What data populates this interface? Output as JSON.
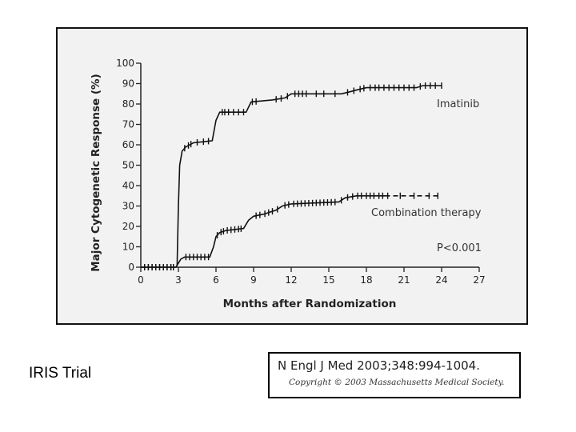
{
  "slide": {
    "caption": "IRIS Trial",
    "citation": {
      "reference": "N Engl J Med 2003;348:994-1004.",
      "copyright": "Copyright © 2003 Massachusetts Medical Society."
    }
  },
  "chart_data": {
    "type": "line",
    "title": "",
    "xlabel": "Months after Randomization",
    "ylabel": "Major Cytogenetic Response (%)",
    "xlim": [
      0,
      27
    ],
    "ylim": [
      0,
      100
    ],
    "xticks": [
      0,
      3,
      6,
      9,
      12,
      15,
      18,
      21,
      24,
      27
    ],
    "yticks": [
      0,
      10,
      20,
      30,
      40,
      50,
      60,
      70,
      80,
      90,
      100
    ],
    "annotation": "P<0.001",
    "series": [
      {
        "name": "Imatinib",
        "color": "#111111",
        "style": "solid",
        "points": [
          [
            0,
            0
          ],
          [
            2.8,
            0
          ],
          [
            2.9,
            1
          ],
          [
            3.0,
            30
          ],
          [
            3.1,
            50
          ],
          [
            3.3,
            57
          ],
          [
            3.6,
            59
          ],
          [
            4.2,
            61
          ],
          [
            5.7,
            62
          ],
          [
            6.0,
            72
          ],
          [
            6.3,
            76
          ],
          [
            6.8,
            76
          ],
          [
            8.4,
            76
          ],
          [
            8.8,
            81
          ],
          [
            10.5,
            82
          ],
          [
            11.5,
            83
          ],
          [
            12.0,
            85
          ],
          [
            16.0,
            85
          ],
          [
            16.7,
            86
          ],
          [
            17.3,
            87
          ],
          [
            18.0,
            88
          ],
          [
            22.0,
            88
          ],
          [
            22.5,
            89
          ],
          [
            24.0,
            89
          ]
        ]
      },
      {
        "name": "Combination therapy",
        "color": "#111111",
        "style": "solid",
        "points": [
          [
            0,
            0
          ],
          [
            2.8,
            0
          ],
          [
            3.0,
            2
          ],
          [
            3.2,
            4
          ],
          [
            3.5,
            5
          ],
          [
            5.5,
            5
          ],
          [
            5.8,
            10
          ],
          [
            6.0,
            15
          ],
          [
            6.3,
            17
          ],
          [
            6.8,
            18
          ],
          [
            8.2,
            19
          ],
          [
            8.6,
            23
          ],
          [
            9.0,
            25
          ],
          [
            9.8,
            26
          ],
          [
            10.8,
            28
          ],
          [
            11.3,
            30
          ],
          [
            12.0,
            31
          ],
          [
            15.8,
            32
          ],
          [
            16.3,
            34
          ],
          [
            17.2,
            35
          ],
          [
            19.5,
            35
          ]
        ]
      },
      {
        "name": "Combination therapy (censored tail)",
        "color": "#111111",
        "style": "dashed",
        "points": [
          [
            19.5,
            35
          ],
          [
            23.7,
            35
          ]
        ]
      }
    ],
    "censor_marks": [
      {
        "series": 0,
        "x": [
          0.3,
          0.6,
          0.9,
          1.2,
          1.5,
          1.8,
          2.1,
          2.4,
          2.6,
          3.5,
          3.8,
          4.0,
          4.5,
          5.0,
          5.4,
          6.5,
          6.7,
          7.0,
          7.4,
          7.8,
          8.2,
          8.9,
          9.2,
          10.8,
          11.2,
          11.7,
          12.3,
          12.6,
          12.9,
          13.2,
          14.0,
          14.6,
          15.5,
          16.5,
          17.0,
          17.5,
          17.8,
          18.3,
          18.7,
          19.0,
          19.4,
          19.8,
          20.2,
          20.6,
          21.0,
          21.4,
          21.8,
          22.3,
          22.7,
          23.1,
          23.5,
          24.0
        ]
      },
      {
        "series": 1,
        "x": [
          0.3,
          0.6,
          0.9,
          1.2,
          1.5,
          1.8,
          2.1,
          2.4,
          2.6,
          3.6,
          3.9,
          4.2,
          4.5,
          4.8,
          5.1,
          5.4,
          6.1,
          6.4,
          6.6,
          6.9,
          7.2,
          7.5,
          7.8,
          8.0,
          9.2,
          9.5,
          9.9,
          10.2,
          10.5,
          10.9,
          11.5,
          11.8,
          12.2,
          12.5,
          12.8,
          13.1,
          13.4,
          13.7,
          14.0,
          14.3,
          14.6,
          14.9,
          15.2,
          15.5,
          16.0,
          16.5,
          16.9,
          17.3,
          17.6,
          18.0,
          18.3,
          18.6,
          19.0,
          19.3,
          19.7,
          20.7,
          21.8,
          23.0,
          23.7
        ]
      }
    ]
  }
}
